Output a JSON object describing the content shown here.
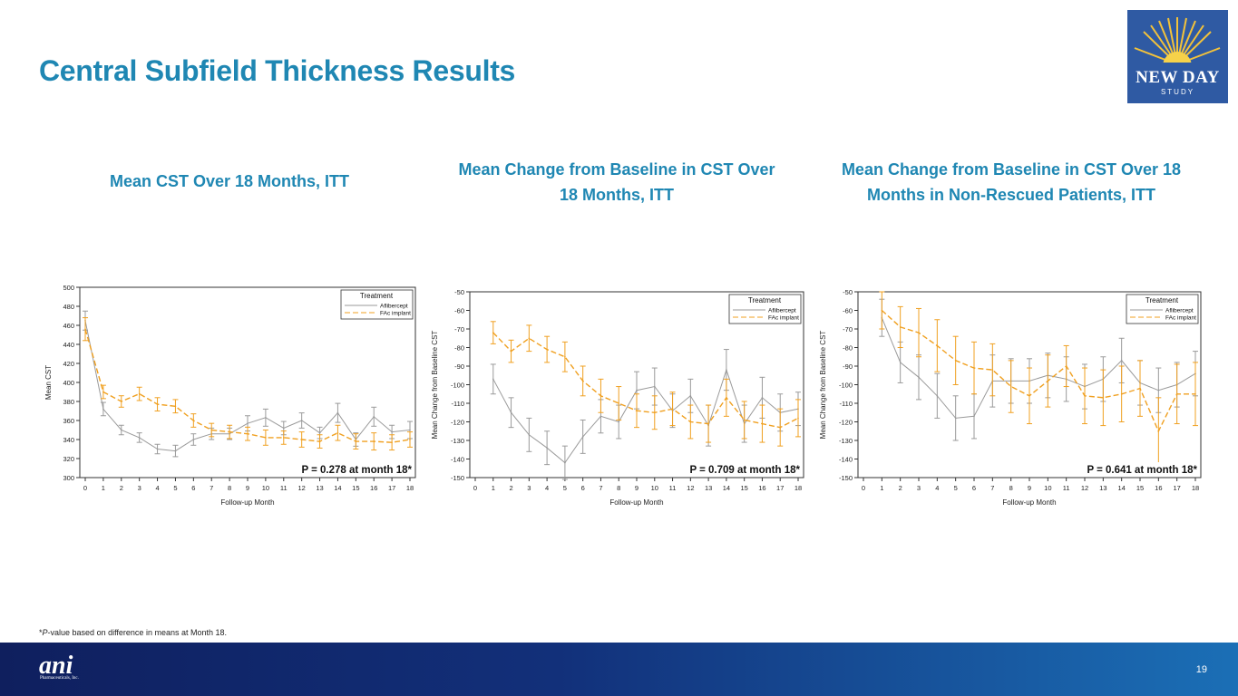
{
  "slide": {
    "title": "Central Subfield Thickness Results",
    "page_number": "19",
    "footnote_prefix": "*",
    "footnote_italic": "P",
    "footnote_rest": "-value based on difference in means at Month 18.",
    "logo_line1": "NEW DAY",
    "logo_line2": "STUDY",
    "brand_name": "ani",
    "brand_sub": "Pharmaceuticals, Inc."
  },
  "colors": {
    "title": "#1f87b3",
    "aflibercept": "#9a9a9a",
    "fac": "#f0a020",
    "footer": "#12307a"
  },
  "chart_data": [
    {
      "type": "line",
      "title": "Mean CST Over 18 Months, ITT",
      "xlabel": "Follow-up Month",
      "ylabel": "Mean CST",
      "xlim": [
        0,
        18
      ],
      "ylim": [
        300,
        500
      ],
      "yticks": [
        300,
        320,
        340,
        360,
        380,
        400,
        420,
        440,
        460,
        480,
        500
      ],
      "x": [
        0,
        1,
        2,
        3,
        4,
        5,
        6,
        7,
        8,
        9,
        10,
        11,
        12,
        13,
        14,
        15,
        16,
        17,
        18
      ],
      "legend_title": "Treatment",
      "annotation": "P = 0.278 at month 18*",
      "series": [
        {
          "name": "Aflibercept",
          "values": [
            465,
            372,
            350,
            342,
            330,
            328,
            340,
            346,
            346,
            357,
            363,
            352,
            360,
            347,
            368,
            340,
            364,
            348,
            350
          ],
          "err": [
            10,
            7,
            5,
            5,
            5,
            6,
            6,
            6,
            6,
            8,
            9,
            7,
            8,
            6,
            10,
            7,
            10,
            7,
            9
          ]
        },
        {
          "name": "FAc implant",
          "values": [
            456,
            390,
            380,
            388,
            377,
            375,
            360,
            350,
            348,
            346,
            342,
            342,
            340,
            338,
            347,
            338,
            338,
            337,
            340
          ],
          "err": [
            12,
            7,
            6,
            7,
            7,
            7,
            7,
            7,
            7,
            7,
            8,
            7,
            8,
            7,
            8,
            8,
            9,
            8,
            8
          ]
        }
      ]
    },
    {
      "type": "line",
      "title": "Mean Change from Baseline in CST Over 18 Months, ITT",
      "xlabel": "Follow-up Month",
      "ylabel": "Mean Change from Baseline CST",
      "xlim": [
        0,
        18
      ],
      "ylim": [
        -150,
        -50
      ],
      "yticks": [
        -150,
        -140,
        -130,
        -120,
        -110,
        -100,
        -90,
        -80,
        -70,
        -60,
        -50
      ],
      "x": [
        1,
        2,
        3,
        4,
        5,
        6,
        7,
        8,
        9,
        10,
        11,
        12,
        13,
        14,
        15,
        16,
        17,
        18
      ],
      "legend_title": "Treatment",
      "annotation": "P = 0.709 at month 18*",
      "series": [
        {
          "name": "Aflibercept",
          "values": [
            -97,
            -115,
            -127,
            -134,
            -142,
            -128,
            -117,
            -120,
            -103,
            -101,
            -114,
            -106,
            -122,
            -92,
            -121,
            -107,
            -115,
            -113
          ],
          "err": [
            8,
            8,
            9,
            9,
            9,
            9,
            9,
            9,
            10,
            10,
            9,
            9,
            11,
            11,
            10,
            11,
            10,
            9
          ]
        },
        {
          "name": "FAc implant",
          "values": [
            -72,
            -82,
            -75,
            -81,
            -85,
            -98,
            -106,
            -110,
            -114,
            -115,
            -113,
            -120,
            -121,
            -107,
            -119,
            -121,
            -123,
            -118
          ],
          "err": [
            6,
            6,
            7,
            7,
            8,
            8,
            9,
            9,
            9,
            9,
            9,
            9,
            10,
            10,
            10,
            10,
            10,
            10
          ]
        }
      ]
    },
    {
      "type": "line",
      "title": "Mean Change from Baseline in CST Over 18 Months in Non-Rescued Patients, ITT",
      "xlabel": "Follow-up Month",
      "ylabel": "Mean Change from Baseline CST",
      "xlim": [
        0,
        18
      ],
      "ylim": [
        -150,
        -50
      ],
      "yticks": [
        -150,
        -140,
        -130,
        -120,
        -110,
        -100,
        -90,
        -80,
        -70,
        -60,
        -50
      ],
      "x": [
        1,
        2,
        3,
        4,
        5,
        6,
        7,
        8,
        9,
        10,
        11,
        12,
        13,
        14,
        15,
        16,
        17,
        18
      ],
      "legend_title": "Treatment",
      "annotation": "P = 0.641 at month 18*",
      "series": [
        {
          "name": "Aflibercept",
          "values": [
            -64,
            -88,
            -96,
            -106,
            -118,
            -117,
            -98,
            -98,
            -98,
            -95,
            -97,
            -101,
            -97,
            -87,
            -99,
            -103,
            -100,
            -94
          ],
          "err": [
            10,
            11,
            12,
            12,
            12,
            12,
            14,
            12,
            12,
            12,
            12,
            12,
            12,
            12,
            12,
            12,
            12,
            12
          ]
        },
        {
          "name": "FAc implant",
          "values": [
            -60,
            -69,
            -72,
            -79,
            -87,
            -91,
            -92,
            -101,
            -106,
            -98,
            -90,
            -106,
            -107,
            -105,
            -102,
            -125,
            -105,
            -105
          ],
          "err": [
            10,
            11,
            13,
            14,
            13,
            14,
            14,
            14,
            15,
            14,
            11,
            15,
            15,
            15,
            15,
            18,
            16,
            17
          ]
        }
      ]
    }
  ]
}
